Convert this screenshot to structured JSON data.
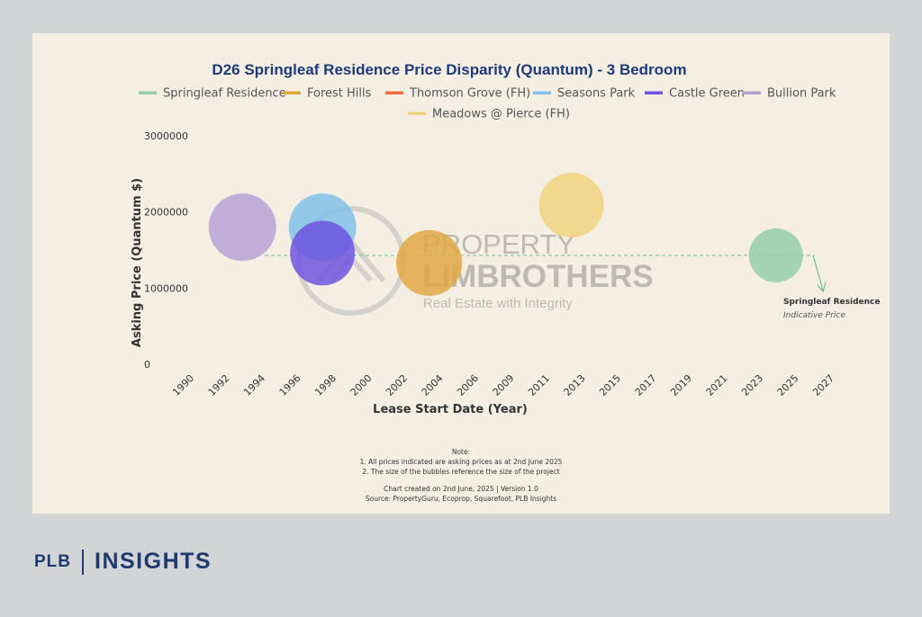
{
  "chart_data": {
    "type": "scatter",
    "title": "D26 Springleaf Residence Price Disparity (Quantum) - 3 Bedroom",
    "xlabel": "Lease Start Date (Year)",
    "ylabel": "Asking Price (Quantum $)",
    "x_ticks": [
      "1990",
      "1992",
      "1994",
      "1996",
      "1998",
      "2000",
      "2002",
      "2004",
      "2006",
      "2009",
      "2011",
      "2013",
      "2015",
      "2017",
      "2019",
      "2021",
      "2023",
      "2025",
      "2027"
    ],
    "y_ticks": [
      "0",
      "1000000",
      "2000000",
      "3000000"
    ],
    "ylim": [
      0,
      3000000
    ],
    "grid": false,
    "legend_position": "top",
    "reference_line": {
      "value": 1430000,
      "style": "dashed",
      "color": "#7cc49a"
    },
    "series": [
      {
        "name": "Springleaf Residence",
        "color": "#93ccaa",
        "x": 2024,
        "y": 1430000,
        "size": 1.0
      },
      {
        "name": "Forest Hills",
        "color": "#e0a640",
        "x": 2003.5,
        "y": 1330000,
        "size": 1.22
      },
      {
        "name": "Thomson Grove (FH)",
        "color": "#ef6a3c",
        "x": null,
        "y": null,
        "size": 0
      },
      {
        "name": "Seasons Park",
        "color": "#7fc0ea",
        "x": 1997.5,
        "y": 1800000,
        "size": 1.25
      },
      {
        "name": "Castle Green",
        "color": "#6b4fe0",
        "x": 1997.5,
        "y": 1460000,
        "size": 1.2
      },
      {
        "name": "Bullion Park",
        "color": "#b79fd6",
        "x": 1993,
        "y": 1800000,
        "size": 1.25
      },
      {
        "name": "Meadows @ Pierce (FH)",
        "color": "#f2d27c",
        "x": 2012.5,
        "y": 2090000,
        "size": 1.2
      }
    ],
    "annotation": {
      "title": "Springleaf Residence",
      "subtitle": "Indicative Price"
    }
  },
  "watermark": {
    "line1": "PROPERTY",
    "line2": "LIMBROTHERS",
    "line3": "Real Estate with Integrity"
  },
  "notes": {
    "heading": "Note:",
    "items": [
      "1. All prices indicated are asking prices as at 2nd June 2025",
      "2. The size of the bubbles reference the size of the project"
    ],
    "created": "Chart created on 2nd June, 2025 | Version 1.0",
    "source": "Source: PropertyGuru, Ecoprop, Squarefoot, PLB Insights"
  },
  "brand": {
    "left": "PLB",
    "right": "INSIGHTS"
  }
}
